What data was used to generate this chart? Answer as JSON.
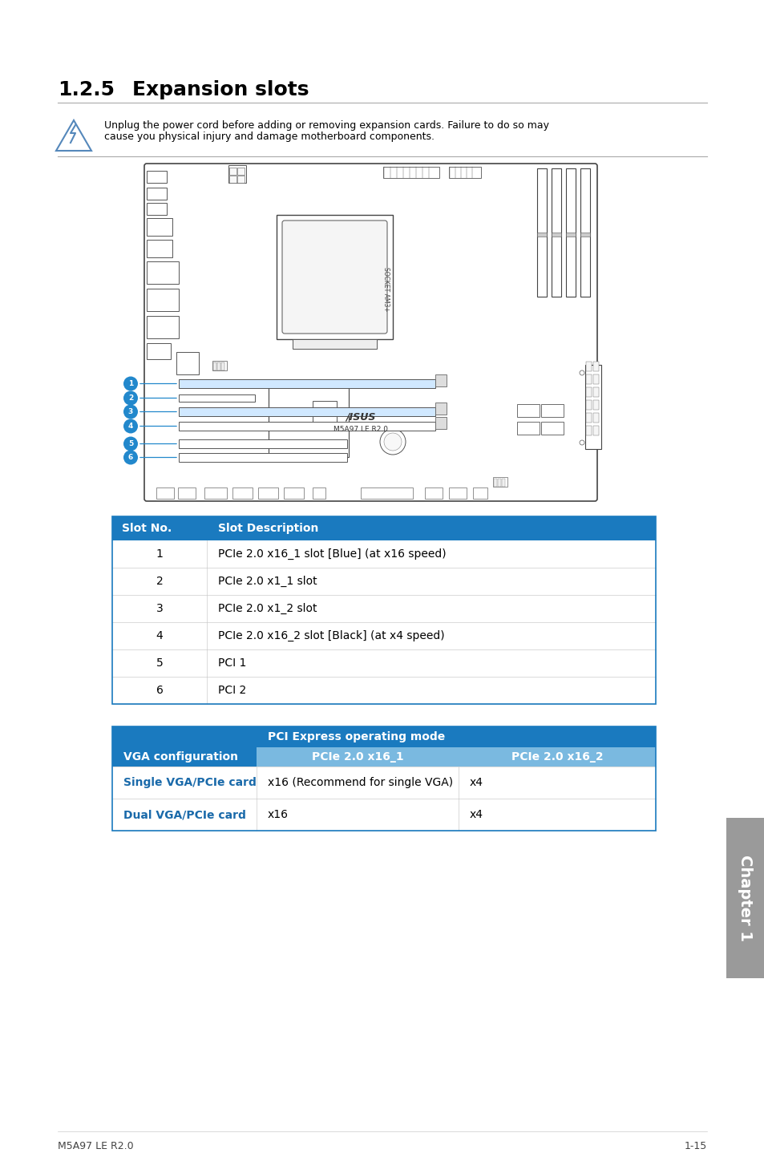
{
  "page_bg": "#ffffff",
  "section_num": "1.2.5",
  "section_title": "Expansion slots",
  "blue_header_color": "#1a7abf",
  "light_blue_color": "#7ab9e0",
  "warning_text_line1": "Unplug the power cord before adding or removing expansion cards. Failure to do so may",
  "warning_text_line2": "cause you physical injury and damage motherboard components.",
  "table1_header": [
    "Slot No.",
    "Slot Description"
  ],
  "table1_rows": [
    [
      "1",
      "PCIe 2.0 x16_1 slot [Blue] (at x16 speed)"
    ],
    [
      "2",
      "PCIe 2.0 x1_1 slot"
    ],
    [
      "3",
      "PCIe 2.0 x1_2 slot"
    ],
    [
      "4",
      "PCIe 2.0 x16_2 slot [Black] (at x4 speed)"
    ],
    [
      "5",
      "PCI 1"
    ],
    [
      "6",
      "PCI 2"
    ]
  ],
  "table2_header_main": "PCI Express operating mode",
  "table2_col1_header": "VGA configuration",
  "table2_subheaders": [
    "PCIe 2.0 x16_1",
    "PCIe 2.0 x16_2"
  ],
  "table2_rows": [
    [
      "Single VGA/PCIe card",
      "x16 (Recommend for single VGA)",
      "x4"
    ],
    [
      "Dual VGA/PCIe card",
      "x16",
      "x4"
    ]
  ],
  "chapter_label": "Chapter 1",
  "footer_left": "M5A97 LE R2.0",
  "footer_right": "1-15",
  "gray_sidebar_color": "#9a9a9a"
}
